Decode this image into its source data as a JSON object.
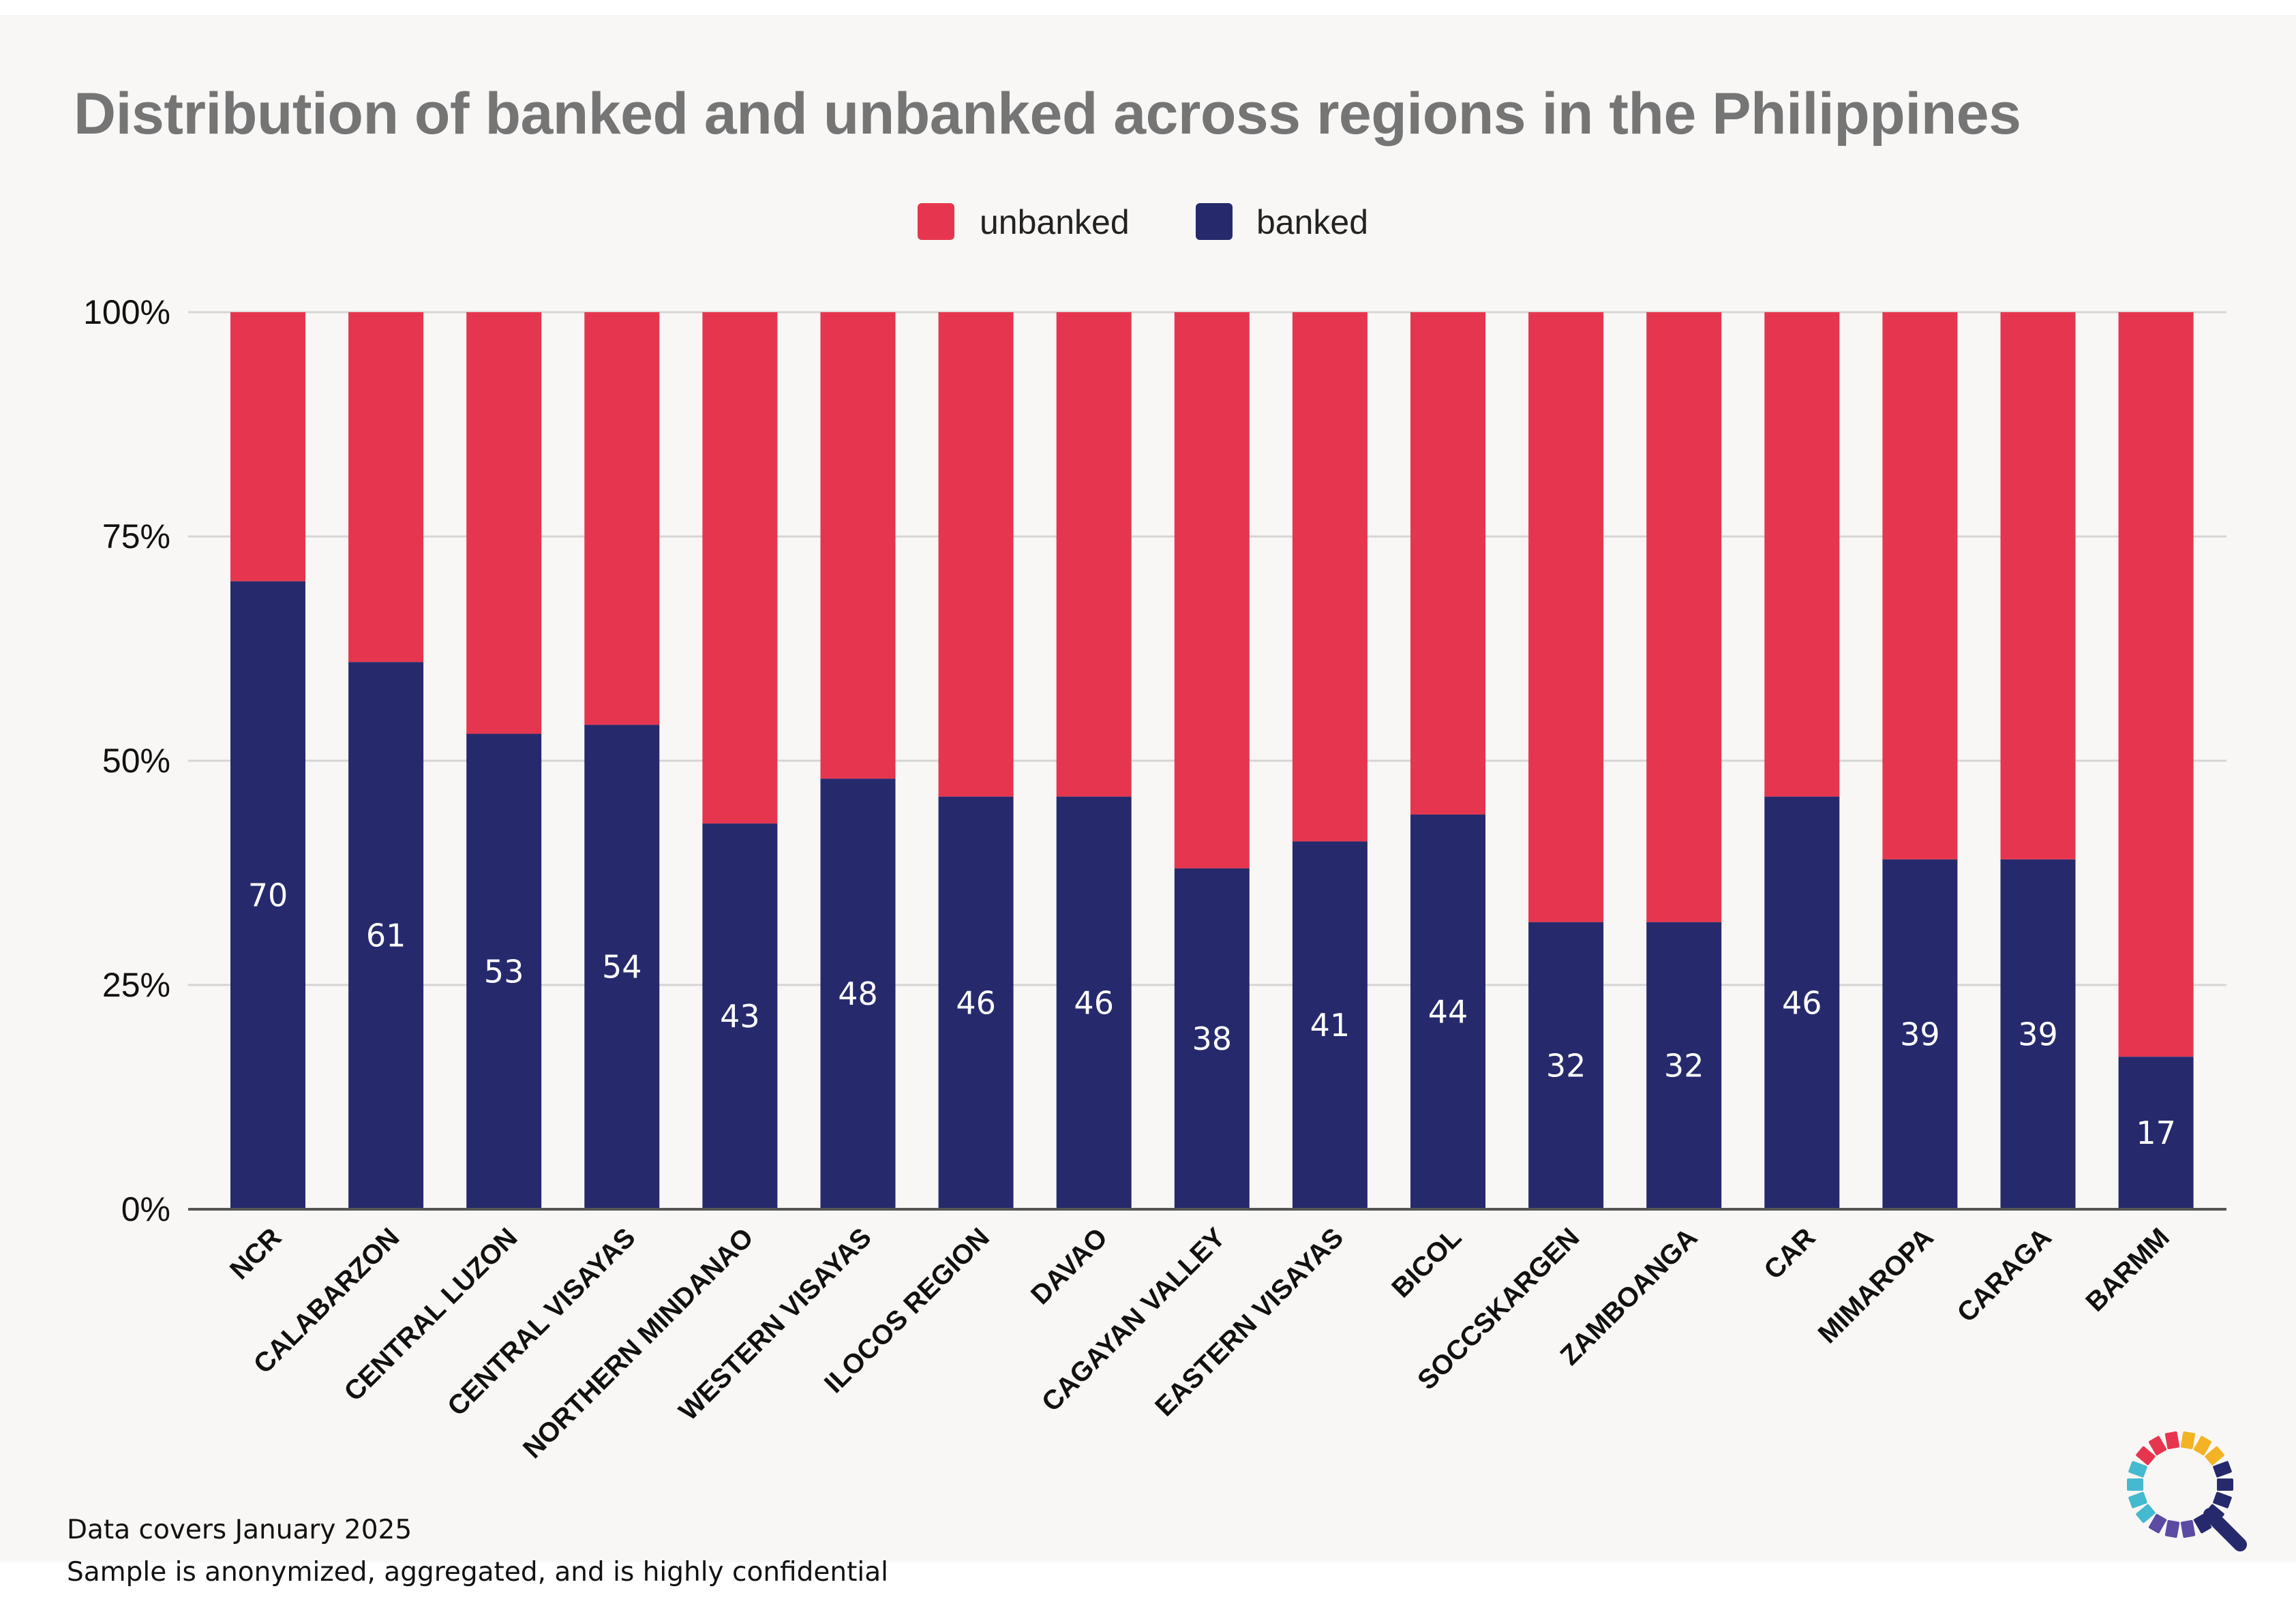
{
  "colors": {
    "banked": "#262a6c",
    "unbanked": "#e6364f",
    "grid": "#d5d5d5",
    "axis": "#555555",
    "title": "#757575",
    "bar_label": "#ffffff"
  },
  "footnotes": {
    "line1": "Data covers January 2025",
    "line2": "Sample is anonymized, aggregated, and is highly confidential"
  },
  "logo": {
    "icon": "magnifier-ring-logo-icon"
  },
  "chart_data": {
    "type": "bar",
    "stacked": true,
    "percent": true,
    "title": "Distribution of banked and unbanked across regions in the Philippines",
    "xlabel": "",
    "ylabel": "",
    "ylim": [
      0,
      100
    ],
    "y_ticks": [
      "0%",
      "25%",
      "50%",
      "75%",
      "100%"
    ],
    "grid": true,
    "legend_position": "top-center",
    "legend": [
      "unbanked",
      "banked"
    ],
    "categories": [
      "NCR",
      "CALABARZON",
      "CENTRAL LUZON",
      "CENTRAL VISAYAS",
      "NORTHERN MINDANAO",
      "WESTERN VISAYAS",
      "ILOCOS REGION",
      "DAVAO",
      "CAGAYAN VALLEY",
      "EASTERN VISAYAS",
      "BICOL",
      "SOCCSKARGEN",
      "ZAMBOANGA",
      "CAR",
      "MIMAROPA",
      "CARAGA",
      "BARMM"
    ],
    "series": [
      {
        "name": "banked",
        "values": [
          70,
          61,
          53,
          54,
          43,
          48,
          46,
          46,
          38,
          41,
          44,
          32,
          32,
          46,
          39,
          39,
          17
        ]
      },
      {
        "name": "unbanked",
        "values": [
          30,
          39,
          47,
          46,
          57,
          52,
          54,
          54,
          62,
          59,
          56,
          68,
          68,
          54,
          61,
          61,
          83
        ]
      }
    ],
    "data_labels": [
      "70",
      "61",
      "53",
      "54",
      "43",
      "48",
      "46",
      "46",
      "38",
      "41",
      "44",
      "32",
      "32",
      "46",
      "39",
      "39",
      "17"
    ]
  }
}
